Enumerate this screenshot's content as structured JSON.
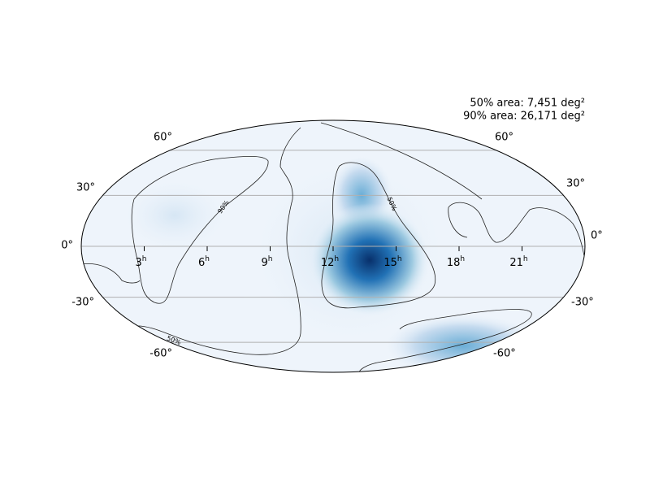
{
  "annotations": [
    "50% area: 7,451 deg²",
    "90% area: 26,171 deg²"
  ],
  "dec_labels_left": [
    "60°",
    "30°",
    "0°",
    "-30°",
    "-60°"
  ],
  "dec_labels_right": [
    "60°",
    "30°",
    "0°",
    "-30°",
    "-60°"
  ],
  "ra_labels": [
    {
      "value": "21",
      "unit": "h"
    },
    {
      "value": "18",
      "unit": "h"
    },
    {
      "value": "15",
      "unit": "h"
    },
    {
      "value": "12",
      "unit": "h"
    },
    {
      "value": "9",
      "unit": "h"
    },
    {
      "value": "6",
      "unit": "h"
    },
    {
      "value": "3",
      "unit": "h"
    }
  ],
  "contour_labels": [
    "90%",
    "50%",
    "50%"
  ]
}
